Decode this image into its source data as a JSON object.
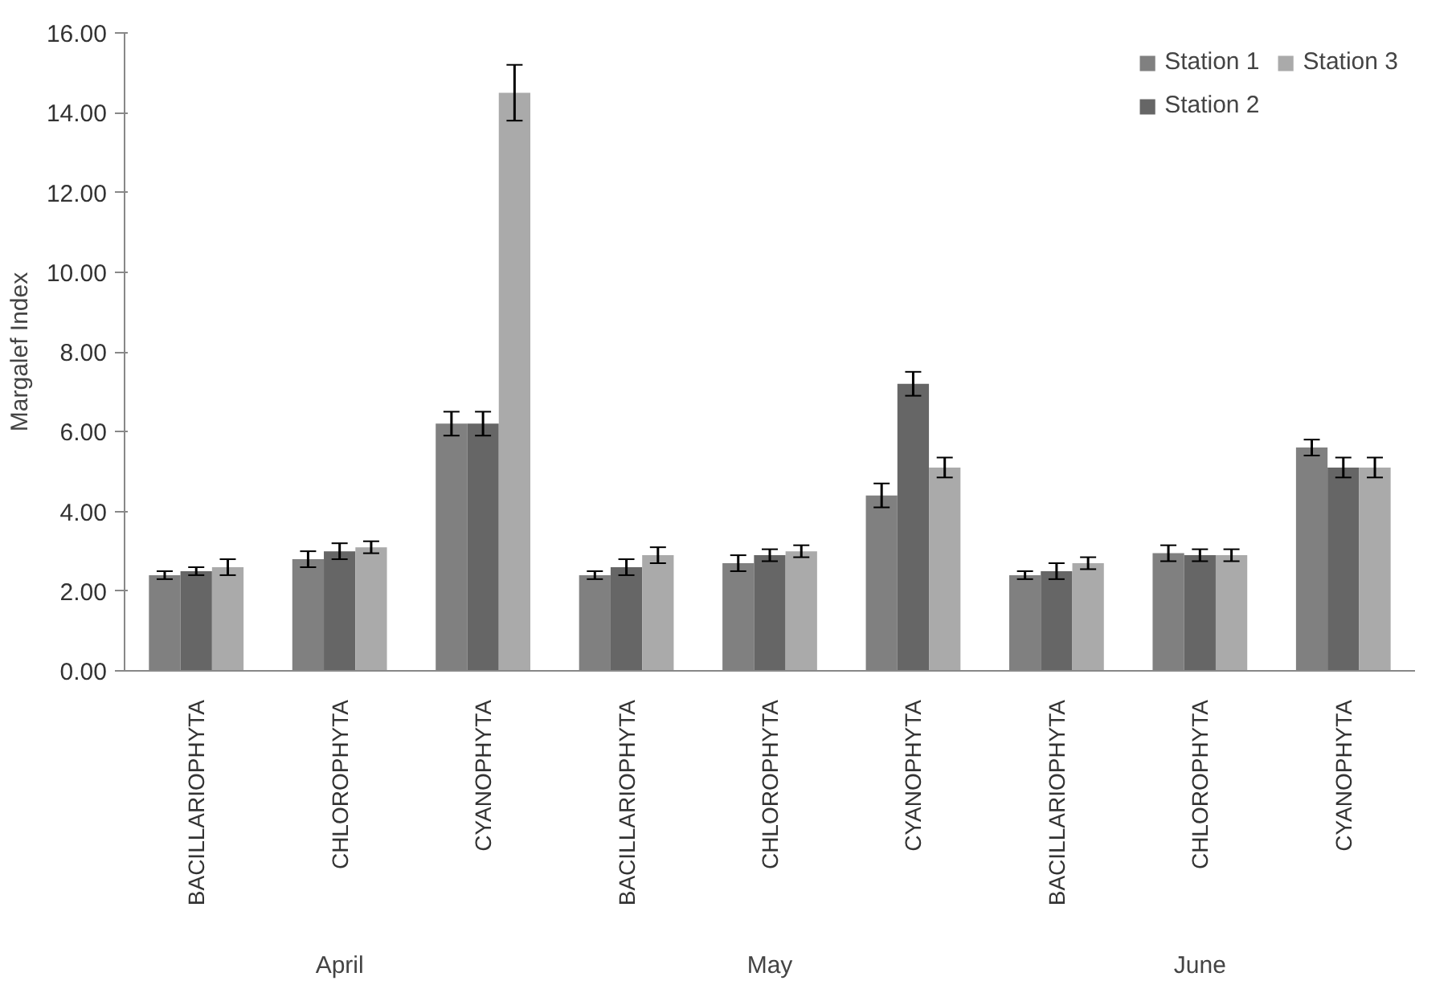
{
  "chart_data": {
    "type": "bar",
    "ylabel": "Margalef Index",
    "categories": [
      "BACILLARIOPHYTA",
      "CHLOROPHYTA",
      "CYANOPHYTA",
      "BACILLARIOPHYTA",
      "CHLOROPHYTA",
      "CYANOPHYTA",
      "BACILLARIOPHYTA",
      "CHLOROPHYTA",
      "CYANOPHYTA"
    ],
    "series": [
      {
        "name": "Station 1",
        "color": "#808080",
        "values": [
          2.4,
          2.8,
          6.2,
          2.4,
          2.7,
          4.4,
          2.4,
          2.95,
          5.6
        ],
        "errors": [
          0.1,
          0.2,
          0.3,
          0.1,
          0.2,
          0.3,
          0.1,
          0.2,
          0.2
        ]
      },
      {
        "name": "Station 2",
        "color": "#666666",
        "values": [
          2.5,
          3.0,
          6.2,
          2.6,
          2.9,
          7.2,
          2.5,
          2.9,
          5.1
        ],
        "errors": [
          0.1,
          0.2,
          0.3,
          0.2,
          0.15,
          0.3,
          0.2,
          0.15,
          0.25
        ]
      },
      {
        "name": "Station 3",
        "color": "#aaaaaa",
        "values": [
          2.6,
          3.1,
          14.5,
          2.9,
          3.0,
          5.1,
          2.7,
          2.9,
          5.1
        ],
        "errors": [
          0.2,
          0.15,
          0.7,
          0.2,
          0.15,
          0.25,
          0.15,
          0.15,
          0.25
        ]
      }
    ],
    "ylim": [
      0,
      16
    ],
    "yticks": [
      {
        "value": 0,
        "label": "0.00"
      },
      {
        "value": 2,
        "label": "2.00"
      },
      {
        "value": 4,
        "label": "4.00"
      },
      {
        "value": 6,
        "label": "6.00"
      },
      {
        "value": 8,
        "label": "8.00"
      },
      {
        "value": 10,
        "label": "10.00"
      },
      {
        "value": 12,
        "label": "12.00"
      },
      {
        "value": 14,
        "label": "14.00"
      },
      {
        "value": 16,
        "label": "16.00"
      }
    ],
    "annotations": [
      "April",
      "May",
      "June"
    ],
    "legend": "top right",
    "grid": false
  }
}
